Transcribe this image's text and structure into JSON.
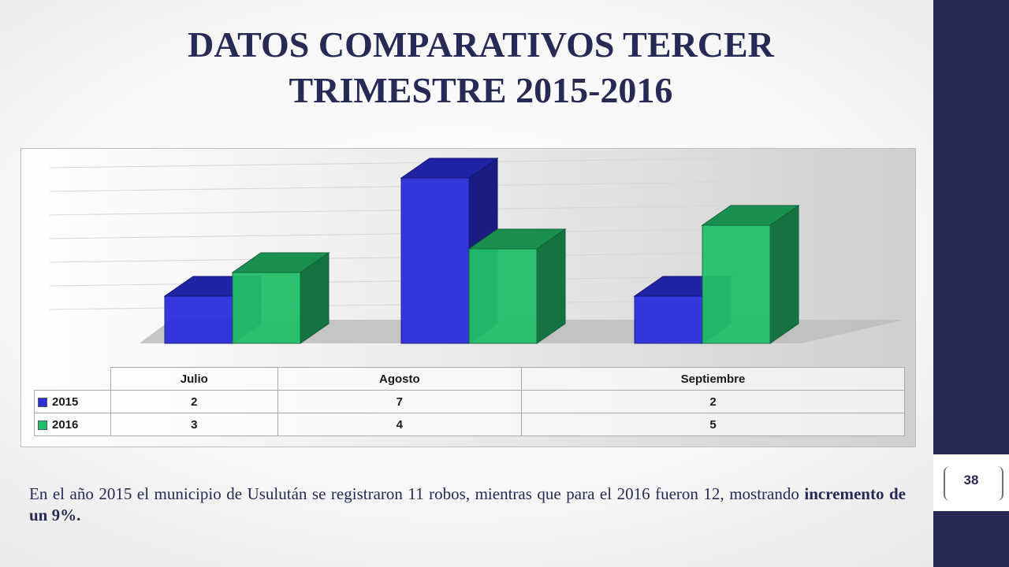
{
  "slide": {
    "title_line1": "DATOS COMPARATIVOS TERCER",
    "title_line2": "TRIMESTRE 2015-2016",
    "page_number": "38",
    "caption_text": "En el año 2015 el municipio de Usulután se registraron 11 robos, mientras que para el 2016 fueron 12, mostrando ",
    "caption_emphasis": "incremento de un 9%."
  },
  "colors": {
    "accent_navy": "#262a55",
    "series_2015": "#2b2fdc",
    "series_2016": "#22c06a"
  },
  "chart_data": {
    "type": "bar",
    "title": "",
    "xlabel": "",
    "ylabel": "",
    "ylim": [
      0,
      7
    ],
    "grid": true,
    "categories": [
      "Julio",
      "Agosto",
      "Septiembre"
    ],
    "series": [
      {
        "name": "2015",
        "values": [
          2,
          7,
          2
        ]
      },
      {
        "name": "2016",
        "values": [
          3,
          4,
          5
        ]
      }
    ]
  }
}
